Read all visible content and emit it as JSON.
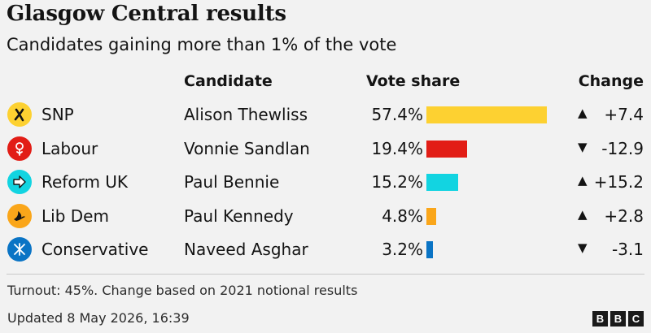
{
  "header": {
    "title": "Glasgow Central results",
    "subtitle": "Candidates gaining more than 1% of the vote"
  },
  "columns": {
    "candidate": "Candidate",
    "vote_share": "Vote share",
    "change": "Change"
  },
  "chart_data": {
    "type": "bar",
    "title": "Glasgow Central results",
    "subtitle": "Candidates gaining more than 1% of the vote",
    "categories": [
      "SNP",
      "Labour",
      "Reform UK",
      "Lib Dem",
      "Conservative"
    ],
    "candidates": [
      "Alison Thewliss",
      "Vonnie Sandlan",
      "Paul Bennie",
      "Paul Kennedy",
      "Naveed Asghar"
    ],
    "values": [
      57.4,
      19.4,
      15.2,
      4.8,
      3.2
    ],
    "value_labels": [
      "57.4%",
      "19.4%",
      "15.2%",
      "4.8%",
      "3.2%"
    ],
    "change": [
      7.4,
      -12.9,
      15.2,
      2.8,
      -3.1
    ],
    "change_labels": [
      "+7.4",
      "-12.9",
      "+15.2",
      "+2.8",
      "-3.1"
    ],
    "colors": [
      "#fdd131",
      "#e21d16",
      "#12d4e1",
      "#faa61a",
      "#0a74c5"
    ],
    "ylim": [
      0,
      100
    ],
    "orientation": "horizontal",
    "grid": false
  },
  "rows": [
    {
      "party": "SNP",
      "candidate": "Alison Thewliss",
      "pct": "57.4%",
      "value": 57.4,
      "change": "+7.4",
      "direction": "up",
      "color": "#fdd131",
      "icon": "snp-logo-icon"
    },
    {
      "party": "Labour",
      "candidate": "Vonnie Sandlan",
      "pct": "19.4%",
      "value": 19.4,
      "change": "-12.9",
      "direction": "down",
      "color": "#e21d16",
      "icon": "labour-rose-icon"
    },
    {
      "party": "Reform UK",
      "candidate": "Paul Bennie",
      "pct": "15.2%",
      "value": 15.2,
      "change": "+15.2",
      "direction": "up",
      "color": "#12d4e1",
      "icon": "reform-arrow-icon"
    },
    {
      "party": "Lib Dem",
      "candidate": "Paul Kennedy",
      "pct": "4.8%",
      "value": 4.8,
      "change": "+2.8",
      "direction": "up",
      "color": "#faa61a",
      "icon": "libdem-bird-icon"
    },
    {
      "party": "Conservative",
      "candidate": "Naveed Asghar",
      "pct": "3.2%",
      "value": 3.2,
      "change": "-3.1",
      "direction": "down",
      "color": "#0a74c5",
      "icon": "conservative-tree-icon"
    }
  ],
  "footer": {
    "note": "Turnout: 45%. Change based on 2021 notional results",
    "updated": "Updated 8 May 2026, 16:39",
    "brand": [
      "B",
      "B",
      "C"
    ]
  }
}
